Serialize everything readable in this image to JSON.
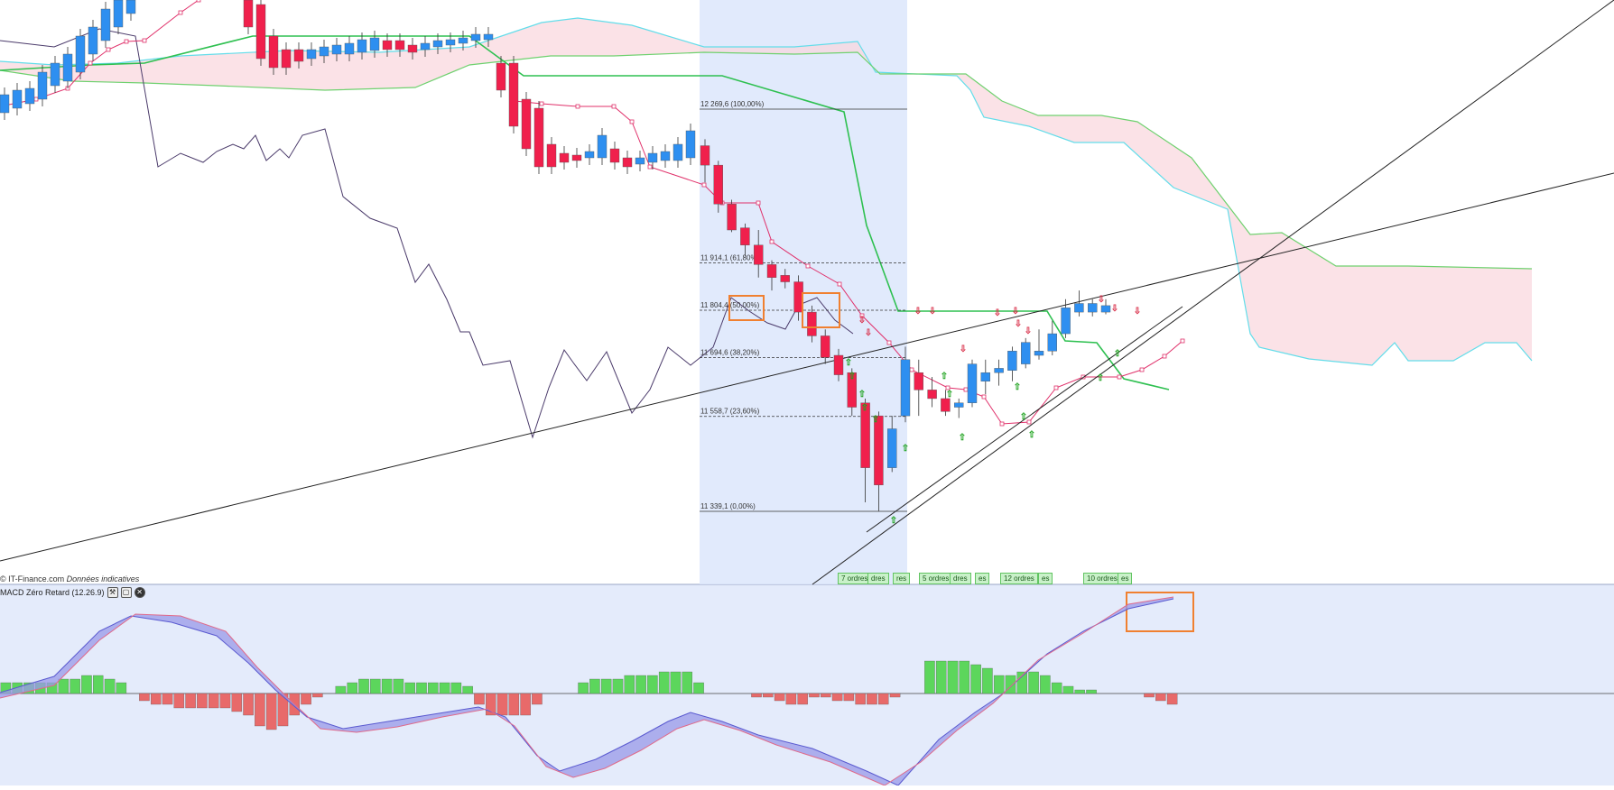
{
  "credit": {
    "source": "© IT-Finance.com",
    "note": "Données indicatives"
  },
  "macd_panel": {
    "title": "MACD Zéro Retard (12.26.9)"
  },
  "icons": [
    "wrench-icon",
    "window-icon",
    "close-icon"
  ],
  "colors": {
    "bull": "#2e8ff0",
    "bear": "#f0204c",
    "kijun": "#2ec050",
    "tenkan": "#e0306a",
    "chikou": "#4a3a6a",
    "cloud_fill": "#f9d6dd",
    "ssa": "#63ddea",
    "ssb": "#6fd16f",
    "fib_zone": "#dce6fb",
    "hist_pos": "#5cd65c",
    "hist_neg": "#e86a6a",
    "highlight": "#f08030"
  },
  "order_tags": [
    "7 ordres",
    "dres",
    "res",
    "5 ordres",
    "dres",
    "es",
    "12 ordres",
    "es",
    "10 ordres",
    "es"
  ],
  "chart_data": [
    {
      "type": "candlestick",
      "title": "",
      "indicators": [
        "Ichimoku (Tenkan, Kijun, Senkou A, Senkou B, Chikou)",
        "Fibonacci retracement",
        "trendlines",
        "buy/sell signal markers"
      ],
      "fibonacci": [
        {
          "price": 12269.6,
          "label": "12 269,6 (100,00%)"
        },
        {
          "price": 11914.1,
          "label": "11 914,1 (61,80%)"
        },
        {
          "price": 11804.4,
          "label": "11 804,4 (50,00%)"
        },
        {
          "price": 11694.6,
          "label": "11 694,6 (38,20%)"
        },
        {
          "price": 11558.7,
          "label": "11 558,7 (23,60%)"
        },
        {
          "price": 11339.1,
          "label": "11 339,1 (0,00%)"
        }
      ],
      "candles_recent": [
        {
          "o": 12185,
          "h": 12200,
          "l": 12100,
          "c": 12140
        },
        {
          "o": 12140,
          "h": 12150,
          "l": 12030,
          "c": 12050
        },
        {
          "o": 12050,
          "h": 12060,
          "l": 11985,
          "c": 11990
        },
        {
          "o": 11995,
          "h": 12005,
          "l": 11930,
          "c": 11955
        },
        {
          "o": 11955,
          "h": 11990,
          "l": 11880,
          "c": 11910
        },
        {
          "o": 11910,
          "h": 11920,
          "l": 11850,
          "c": 11880
        },
        {
          "o": 11885,
          "h": 11900,
          "l": 11855,
          "c": 11870
        },
        {
          "o": 11870,
          "h": 11885,
          "l": 11780,
          "c": 11800
        },
        {
          "o": 11800,
          "h": 11815,
          "l": 11730,
          "c": 11745
        },
        {
          "o": 11745,
          "h": 11760,
          "l": 11680,
          "c": 11695
        },
        {
          "o": 11700,
          "h": 11715,
          "l": 11640,
          "c": 11655
        },
        {
          "o": 11660,
          "h": 11670,
          "l": 11560,
          "c": 11580
        },
        {
          "o": 11590,
          "h": 11600,
          "l": 11360,
          "c": 11440
        },
        {
          "o": 11560,
          "h": 11570,
          "l": 11340,
          "c": 11400
        },
        {
          "o": 11440,
          "h": 11560,
          "l": 11430,
          "c": 11530
        },
        {
          "o": 11560,
          "h": 11720,
          "l": 11545,
          "c": 11690
        },
        {
          "o": 11660,
          "h": 11690,
          "l": 11560,
          "c": 11620
        },
        {
          "o": 11620,
          "h": 11650,
          "l": 11580,
          "c": 11600
        },
        {
          "o": 11600,
          "h": 11620,
          "l": 11560,
          "c": 11570
        },
        {
          "o": 11580,
          "h": 11600,
          "l": 11555,
          "c": 11590
        },
        {
          "o": 11590,
          "h": 11690,
          "l": 11580,
          "c": 11680
        },
        {
          "o": 11640,
          "h": 11690,
          "l": 11610,
          "c": 11660
        },
        {
          "o": 11660,
          "h": 11690,
          "l": 11630,
          "c": 11670
        },
        {
          "o": 11665,
          "h": 11720,
          "l": 11640,
          "c": 11710
        },
        {
          "o": 11680,
          "h": 11740,
          "l": 11670,
          "c": 11730
        },
        {
          "o": 11700,
          "h": 11760,
          "l": 11690,
          "c": 11710
        },
        {
          "o": 11710,
          "h": 11780,
          "l": 11700,
          "c": 11750
        },
        {
          "o": 11750,
          "h": 11830,
          "l": 11740,
          "c": 11810
        },
        {
          "o": 11800,
          "h": 11850,
          "l": 11790,
          "c": 11820
        },
        {
          "o": 11800,
          "h": 11830,
          "l": 11790,
          "c": 11820
        },
        {
          "o": 11800,
          "h": 11830,
          "l": 11795,
          "c": 11815
        }
      ],
      "macd": {
        "histogram": [
          3,
          3,
          3,
          3,
          3,
          4,
          4,
          5,
          5,
          4,
          3,
          0,
          -2,
          -3,
          -3,
          -4,
          -4,
          -4,
          -4,
          -4,
          -5,
          -6,
          -9,
          -10,
          -9,
          -6,
          -3,
          -1,
          0,
          2,
          3,
          4,
          4,
          4,
          4,
          3,
          3,
          3,
          3,
          3,
          2,
          -3,
          -6,
          -6,
          -6,
          -6,
          -3,
          0,
          0,
          0,
          3,
          4,
          4,
          4,
          5,
          5,
          5,
          6,
          6,
          6,
          3,
          0,
          0,
          0,
          0,
          -1,
          -1,
          -2,
          -3,
          -3,
          -1,
          -1,
          -2,
          -2,
          -3,
          -3,
          -3,
          -1,
          0,
          0,
          9,
          9,
          9,
          9,
          8,
          7,
          5,
          5,
          6,
          6,
          5,
          3,
          2,
          1,
          1,
          0,
          0,
          0,
          0,
          -1,
          -2,
          -3
        ]
      }
    }
  ]
}
